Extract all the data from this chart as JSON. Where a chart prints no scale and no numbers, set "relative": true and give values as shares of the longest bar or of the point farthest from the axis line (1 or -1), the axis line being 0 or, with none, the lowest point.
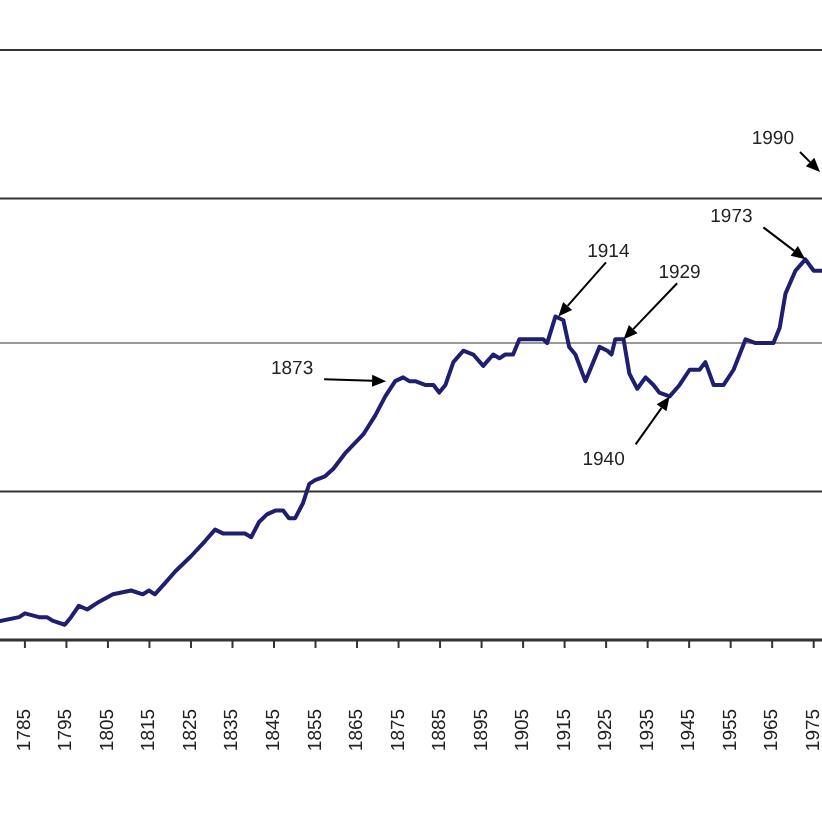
{
  "chart_data": {
    "type": "line",
    "relative": true,
    "xlim": [
      1779,
      1977
    ],
    "ref_lines": [
      {
        "axis": "y",
        "value": 0.39,
        "color": "#333333"
      },
      {
        "axis": "y",
        "value": 0.78,
        "color": "#999999"
      },
      {
        "axis": "y",
        "value": 1.16,
        "color": "#333333"
      },
      {
        "axis": "y",
        "value": 1.55,
        "color": "#333333"
      }
    ],
    "xticks": [
      1785,
      1795,
      1805,
      1815,
      1825,
      1835,
      1845,
      1855,
      1865,
      1875,
      1885,
      1895,
      1905,
      1915,
      1925,
      1935,
      1945,
      1955,
      1965,
      1975
    ],
    "series": [
      {
        "color": "#1f1f70",
        "x": [
          1779,
          1783.6,
          1785,
          1788.4,
          1790.3,
          1791.8,
          1794.6,
          1796.1,
          1798,
          1800,
          1802.8,
          1806.2,
          1810.6,
          1813.4,
          1814.9,
          1816.3,
          1818.8,
          1821.2,
          1825,
          1828.4,
          1830.8,
          1832.7,
          1836.6,
          1838,
          1839.5,
          1841.4,
          1843.3,
          1845.3,
          1847.2,
          1848.6,
          1850.1,
          1852,
          1853.5,
          1854.9,
          1857.3,
          1859.3,
          1862.1,
          1866.5,
          1869.4,
          1871.8,
          1874.2,
          1876.1,
          1877.6,
          1879,
          1881.4,
          1883.4,
          1884.8,
          1886.3,
          1888.2,
          1890.6,
          1893,
          1895.4,
          1897.8,
          1899.3,
          1900.7,
          1902.6,
          1904.1,
          1906.5,
          1909.9,
          1910.8,
          1912.8,
          1914.7,
          1916.1,
          1917.6,
          1920,
          1921.9,
          1923.4,
          1925.3,
          1926.3,
          1927.2,
          1929.2,
          1930.6,
          1932.5,
          1934.5,
          1936.4,
          1937.8,
          1940.3,
          1942.7,
          1945.1,
          1947.5,
          1948.9,
          1950.9,
          1953.3,
          1955.7,
          1958.6,
          1961,
          1965.3,
          1966.8,
          1968.2,
          1970.6,
          1973,
          1975,
          1976.9
        ],
        "values": [
          0.05,
          0.06,
          0.07,
          0.06,
          0.06,
          0.05,
          0.04,
          0.06,
          0.09,
          0.08,
          0.1,
          0.12,
          0.13,
          0.12,
          0.13,
          0.12,
          0.15,
          0.18,
          0.22,
          0.26,
          0.29,
          0.28,
          0.28,
          0.28,
          0.27,
          0.31,
          0.33,
          0.34,
          0.34,
          0.32,
          0.32,
          0.36,
          0.41,
          0.42,
          0.43,
          0.45,
          0.49,
          0.54,
          0.59,
          0.64,
          0.68,
          0.69,
          0.68,
          0.68,
          0.67,
          0.67,
          0.65,
          0.67,
          0.73,
          0.76,
          0.75,
          0.72,
          0.75,
          0.74,
          0.75,
          0.75,
          0.79,
          0.79,
          0.79,
          0.78,
          0.85,
          0.84,
          0.77,
          0.75,
          0.68,
          0.73,
          0.77,
          0.76,
          0.75,
          0.79,
          0.79,
          0.7,
          0.66,
          0.69,
          0.67,
          0.65,
          0.64,
          0.67,
          0.71,
          0.71,
          0.73,
          0.67,
          0.67,
          0.71,
          0.79,
          0.78,
          0.78,
          0.82,
          0.91,
          0.97,
          1,
          0.97,
          0.97
        ]
      }
    ],
    "annotations": [
      {
        "text": "1873",
        "x": 1872,
        "y": 0.68
      },
      {
        "text": "1914",
        "x": 1913.5,
        "y": 0.85
      },
      {
        "text": "1929",
        "x": 1929.2,
        "y": 0.79
      },
      {
        "text": "1940",
        "x": 1940.3,
        "y": 0.64
      },
      {
        "text": "1973",
        "x": 1973,
        "y": 1
      },
      "1990"
    ]
  }
}
